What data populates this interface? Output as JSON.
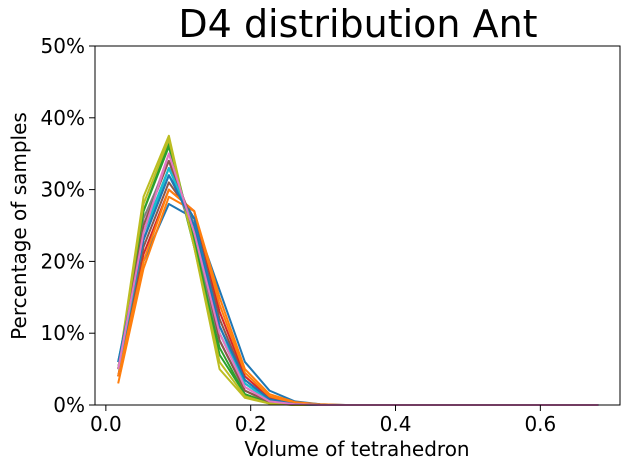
{
  "chart_data": {
    "type": "line",
    "title": "D4 distribution Ant",
    "xlabel": "Volume of tetrahedron",
    "ylabel": "Percentage of samples",
    "xlim": [
      -0.015,
      0.71
    ],
    "ylim": [
      0,
      0.5
    ],
    "x_ticks": [
      0.0,
      0.2,
      0.4,
      0.6
    ],
    "x_tick_labels": [
      "0.0",
      "0.2",
      "0.4",
      "0.6"
    ],
    "y_ticks": [
      0,
      0.1,
      0.2,
      0.3,
      0.4,
      0.5
    ],
    "y_tick_labels": [
      "0%",
      "10%",
      "20%",
      "30%",
      "40%",
      "50%"
    ],
    "grid": false,
    "legend": "none",
    "x": [
      0.017,
      0.052,
      0.087,
      0.122,
      0.157,
      0.192,
      0.226,
      0.261,
      0.296,
      0.331,
      0.366,
      0.401,
      0.436,
      0.471,
      0.506,
      0.541,
      0.576,
      0.611,
      0.646,
      0.68
    ],
    "series": [
      {
        "color": "#1f77b4",
        "values": [
          0.06,
          0.2,
          0.28,
          0.26,
          0.16,
          0.06,
          0.02,
          0.005,
          0.001,
          0,
          0,
          0,
          0,
          0,
          0,
          0,
          0,
          0,
          0,
          0
        ]
      },
      {
        "color": "#ff7f0e",
        "values": [
          0.03,
          0.19,
          0.29,
          0.27,
          0.15,
          0.05,
          0.015,
          0.004,
          0.001,
          0,
          0,
          0,
          0,
          0,
          0,
          0,
          0,
          0,
          0,
          0
        ]
      },
      {
        "color": "#2ca02c",
        "values": [
          0.05,
          0.27,
          0.36,
          0.22,
          0.08,
          0.015,
          0.003,
          0.001,
          0,
          0,
          0,
          0,
          0,
          0,
          0,
          0,
          0,
          0,
          0,
          0
        ]
      },
      {
        "color": "#d62728",
        "values": [
          0.04,
          0.21,
          0.3,
          0.27,
          0.13,
          0.04,
          0.01,
          0.002,
          0,
          0,
          0,
          0,
          0,
          0,
          0,
          0,
          0,
          0,
          0,
          0
        ]
      },
      {
        "color": "#9467bd",
        "values": [
          0.05,
          0.24,
          0.33,
          0.25,
          0.1,
          0.025,
          0.005,
          0.001,
          0,
          0,
          0,
          0,
          0,
          0,
          0,
          0,
          0,
          0,
          0,
          0
        ]
      },
      {
        "color": "#8c564b",
        "values": [
          0.04,
          0.22,
          0.31,
          0.26,
          0.12,
          0.035,
          0.008,
          0.002,
          0,
          0,
          0,
          0,
          0,
          0,
          0,
          0,
          0,
          0,
          0,
          0
        ]
      },
      {
        "color": "#e377c2",
        "values": [
          0.05,
          0.25,
          0.35,
          0.24,
          0.09,
          0.02,
          0.004,
          0.001,
          0,
          0,
          0,
          0,
          0,
          0,
          0,
          0,
          0,
          0,
          0,
          0
        ]
      },
      {
        "color": "#7f7f7f",
        "values": [
          0.05,
          0.26,
          0.34,
          0.23,
          0.09,
          0.02,
          0.004,
          0.001,
          0,
          0,
          0,
          0,
          0,
          0,
          0,
          0,
          0,
          0,
          0,
          0
        ]
      },
      {
        "color": "#bcbd22",
        "values": [
          0.05,
          0.29,
          0.375,
          0.22,
          0.05,
          0.01,
          0.002,
          0,
          0,
          0,
          0,
          0,
          0,
          0,
          0,
          0,
          0,
          0,
          0,
          0
        ]
      },
      {
        "color": "#17becf",
        "values": [
          0.06,
          0.24,
          0.33,
          0.25,
          0.1,
          0.03,
          0.006,
          0.001,
          0,
          0,
          0,
          0,
          0,
          0,
          0,
          0,
          0,
          0,
          0,
          0
        ]
      },
      {
        "color": "#1f77b4",
        "values": [
          0.05,
          0.23,
          0.32,
          0.26,
          0.11,
          0.03,
          0.007,
          0.001,
          0,
          0,
          0,
          0,
          0,
          0,
          0,
          0,
          0,
          0,
          0,
          0
        ]
      },
      {
        "color": "#ff7f0e",
        "values": [
          0.04,
          0.2,
          0.3,
          0.27,
          0.14,
          0.045,
          0.012,
          0.003,
          0,
          0,
          0,
          0,
          0,
          0,
          0,
          0,
          0,
          0,
          0,
          0
        ]
      },
      {
        "color": "#2ca02c",
        "values": [
          0.05,
          0.27,
          0.365,
          0.23,
          0.07,
          0.015,
          0.003,
          0,
          0,
          0,
          0,
          0,
          0,
          0,
          0,
          0,
          0,
          0,
          0,
          0
        ]
      },
      {
        "color": "#8c564b",
        "values": [
          0.05,
          0.25,
          0.34,
          0.25,
          0.09,
          0.02,
          0.004,
          0.001,
          0,
          0,
          0,
          0,
          0,
          0,
          0,
          0,
          0,
          0,
          0,
          0
        ]
      },
      {
        "color": "#bcbd22",
        "values": [
          0.05,
          0.28,
          0.37,
          0.22,
          0.06,
          0.012,
          0.002,
          0,
          0,
          0,
          0,
          0,
          0,
          0,
          0,
          0,
          0,
          0,
          0,
          0
        ]
      },
      {
        "color": "#17becf",
        "values": [
          0.05,
          0.23,
          0.33,
          0.25,
          0.11,
          0.03,
          0.006,
          0.001,
          0,
          0,
          0,
          0,
          0,
          0,
          0,
          0,
          0,
          0,
          0,
          0
        ]
      },
      {
        "color": "#1f77b4",
        "values": [
          0.06,
          0.23,
          0.32,
          0.25,
          0.11,
          0.035,
          0.008,
          0.001,
          0,
          0,
          0,
          0,
          0,
          0,
          0,
          0,
          0,
          0,
          0,
          0
        ]
      },
      {
        "color": "#e377c2",
        "values": [
          0.05,
          0.24,
          0.35,
          0.24,
          0.1,
          0.025,
          0.005,
          0.001,
          0,
          0,
          0,
          0,
          0,
          0,
          0,
          0,
          0,
          0,
          0,
          0
        ]
      }
    ]
  }
}
